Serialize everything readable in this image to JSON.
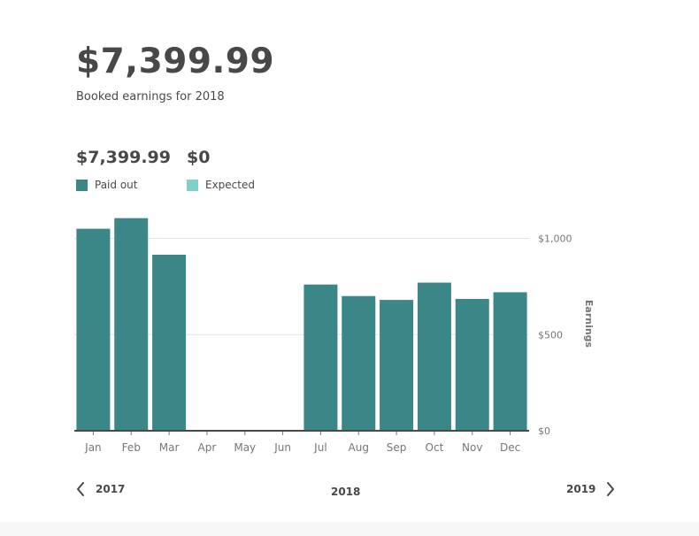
{
  "header": {
    "total": "$7,399.99",
    "subtitle": "Booked earnings for 2018"
  },
  "summary": {
    "paid_amount": "$7,399.99",
    "expected_amount": "$0",
    "paid_label": "Paid out",
    "expected_label": "Expected"
  },
  "colors": {
    "paid": "#3b8686",
    "expected": "#7fd1c8",
    "text": "#484848",
    "grid": "#e4e4e4",
    "axis": "#484848"
  },
  "nav": {
    "prev_year": "2017",
    "current_year": "2018",
    "next_year": "2019"
  },
  "chart_data": {
    "type": "bar",
    "categories": [
      "Jan",
      "Feb",
      "Mar",
      "Apr",
      "May",
      "Jun",
      "Jul",
      "Aug",
      "Sep",
      "Oct",
      "Nov",
      "Dec"
    ],
    "series": [
      {
        "name": "Paid out",
        "values": [
          1050,
          1105,
          915,
          0,
          0,
          0,
          760,
          700,
          680,
          770,
          685,
          720
        ]
      },
      {
        "name": "Expected",
        "values": [
          0,
          0,
          0,
          0,
          0,
          0,
          0,
          0,
          0,
          0,
          0,
          0
        ]
      }
    ],
    "ylabel": "Earnings",
    "yticks": [
      {
        "value": 0,
        "label": "$0"
      },
      {
        "value": 500,
        "label": "$500"
      },
      {
        "value": 1000,
        "label": "$1,000"
      }
    ],
    "ylim": [
      0,
      1150
    ],
    "y_axis_position": "right",
    "grid": true
  }
}
